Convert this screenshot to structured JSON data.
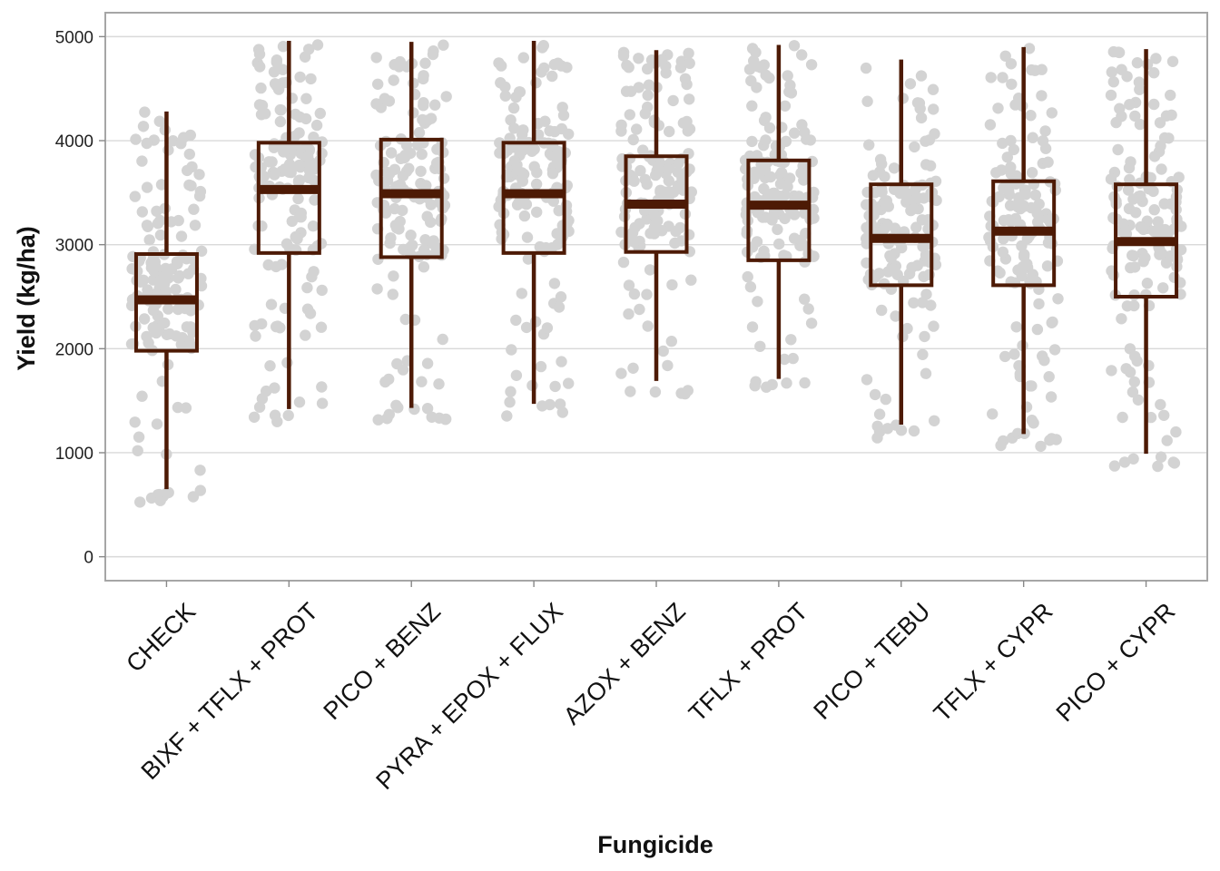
{
  "chart_data": {
    "type": "box",
    "xlabel": "Fungicide",
    "ylabel": "Yield (kg/ha)",
    "ylim": [
      -230,
      5230
    ],
    "yticks": [
      0,
      1000,
      2000,
      3000,
      4000,
      5000
    ],
    "grid": "horizontal",
    "colors": {
      "box": "#4d1a05",
      "points": "#d3d3d3",
      "grid": "#d9d9d9",
      "frame": "#a6a6a6"
    },
    "categories": [
      "CHECK",
      "BIXF + TFLX + PROT",
      "PICO + BENZ",
      "PYRA + EPOX + FLUX",
      "AZOX + BENZ",
      "TFLX + PROT",
      "PICO + TEBU",
      "TFLX + CYPR",
      "PICO + CYPR"
    ],
    "boxes": [
      {
        "whisker_low": 650,
        "q1": 1980,
        "median": 2470,
        "q3": 2910,
        "whisker_high": 4280
      },
      {
        "whisker_low": 1420,
        "q1": 2920,
        "median": 3530,
        "q3": 3980,
        "whisker_high": 4960
      },
      {
        "whisker_low": 1430,
        "q1": 2880,
        "median": 3490,
        "q3": 4010,
        "whisker_high": 4950
      },
      {
        "whisker_low": 1470,
        "q1": 2920,
        "median": 3490,
        "q3": 3980,
        "whisker_high": 4960
      },
      {
        "whisker_low": 1690,
        "q1": 2930,
        "median": 3390,
        "q3": 3850,
        "whisker_high": 4870
      },
      {
        "whisker_low": 1710,
        "q1": 2850,
        "median": 3380,
        "q3": 3810,
        "whisker_high": 4920
      },
      {
        "whisker_low": 1270,
        "q1": 2610,
        "median": 3060,
        "q3": 3580,
        "whisker_high": 4780
      },
      {
        "whisker_low": 1180,
        "q1": 2610,
        "median": 3130,
        "q3": 3610,
        "whisker_high": 4900
      },
      {
        "whisker_low": 990,
        "q1": 2500,
        "median": 3030,
        "q3": 3580,
        "whisker_high": 4880
      }
    ]
  }
}
